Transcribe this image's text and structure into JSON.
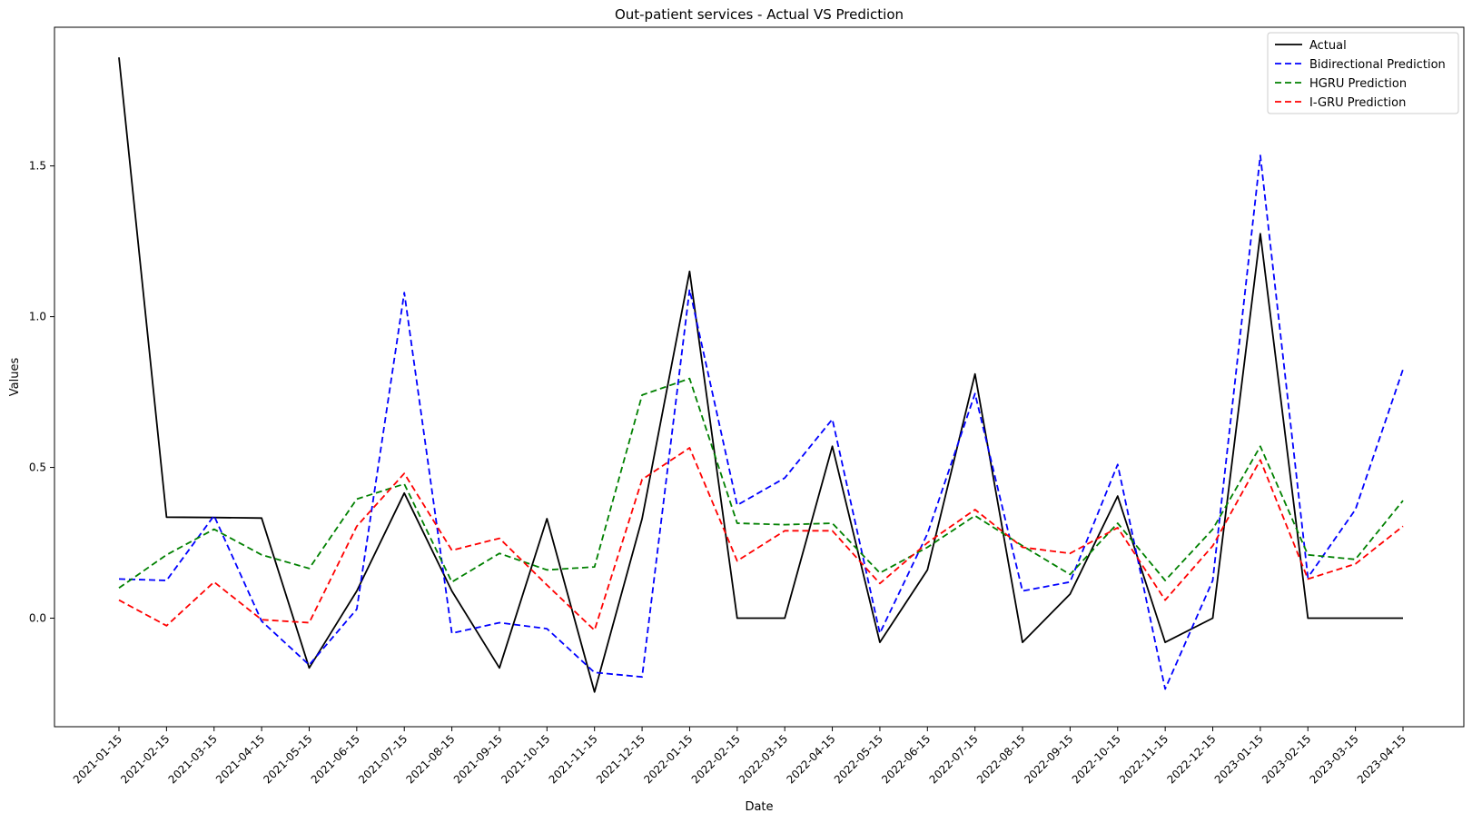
{
  "chart_data": {
    "type": "line",
    "title": "Out-patient services - Actual VS Prediction",
    "xlabel": "Date",
    "ylabel": "Values",
    "ylim": [
      -0.36,
      1.96
    ],
    "yticks": [
      "0.0",
      "0.5",
      "1.0",
      "1.5"
    ],
    "ytick_values": [
      0.0,
      0.5,
      1.0,
      1.5
    ],
    "grid": false,
    "legend_position": "top-right",
    "categories": [
      "2021-01-15",
      "2021-02-15",
      "2021-03-15",
      "2021-04-15",
      "2021-05-15",
      "2021-06-15",
      "2021-07-15",
      "2021-08-15",
      "2021-09-15",
      "2021-10-15",
      "2021-11-15",
      "2021-12-15",
      "2022-01-15",
      "2022-02-15",
      "2022-03-15",
      "2022-04-15",
      "2022-05-15",
      "2022-06-15",
      "2022-07-15",
      "2022-08-15",
      "2022-09-15",
      "2022-10-15",
      "2022-11-15",
      "2022-12-15",
      "2023-01-15",
      "2023-02-15",
      "2023-03-15",
      "2023-04-15"
    ],
    "series": [
      {
        "name": "Actual",
        "color": "#000000",
        "dash": "solid",
        "values": [
          1.86,
          0.335,
          0.334,
          0.332,
          -0.165,
          0.09,
          0.415,
          0.09,
          -0.165,
          0.33,
          -0.245,
          0.33,
          1.15,
          0.0,
          0.0,
          0.57,
          -0.08,
          0.16,
          0.81,
          -0.08,
          0.08,
          0.405,
          -0.08,
          0.0,
          1.275,
          0.0,
          0.0,
          0.0
        ]
      },
      {
        "name": "Bidirectional Prediction",
        "color": "#0000ff",
        "dash": "dashed",
        "values": [
          0.13,
          0.125,
          0.34,
          -0.01,
          -0.155,
          0.03,
          1.08,
          -0.05,
          -0.015,
          -0.035,
          -0.18,
          -0.195,
          1.09,
          0.375,
          0.465,
          0.66,
          -0.05,
          0.28,
          0.745,
          0.09,
          0.12,
          0.51,
          -0.235,
          0.125,
          1.535,
          0.135,
          0.36,
          0.825
        ]
      },
      {
        "name": "HGRU Prediction",
        "color": "#008000",
        "dash": "dashed",
        "values": [
          0.1,
          0.21,
          0.295,
          0.21,
          0.165,
          0.395,
          0.445,
          0.12,
          0.215,
          0.16,
          0.17,
          0.74,
          0.795,
          0.315,
          0.31,
          0.315,
          0.15,
          0.235,
          0.34,
          0.24,
          0.145,
          0.315,
          0.125,
          0.295,
          0.57,
          0.21,
          0.195,
          0.39
        ]
      },
      {
        "name": "I-GRU Prediction",
        "color": "#ff0000",
        "dash": "dashed",
        "values": [
          0.06,
          -0.025,
          0.12,
          -0.005,
          -0.015,
          0.305,
          0.48,
          0.225,
          0.265,
          0.11,
          -0.04,
          0.46,
          0.565,
          0.19,
          0.29,
          0.29,
          0.115,
          0.25,
          0.36,
          0.235,
          0.215,
          0.3,
          0.06,
          0.24,
          0.525,
          0.13,
          0.18,
          0.305
        ]
      }
    ]
  }
}
